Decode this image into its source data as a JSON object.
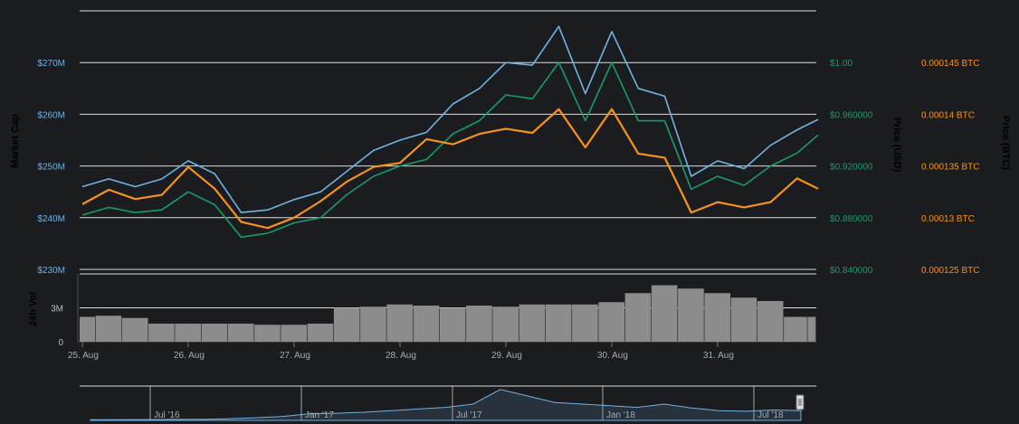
{
  "chart_data": {
    "type": "line",
    "title": "",
    "colors": {
      "market_cap": "#6fb3e3",
      "price_usd": "#1a9a6c",
      "price_btc": "#f7931a",
      "volume": "#8c8c8c",
      "grid": "#ffffff",
      "background": "#1b1c1f"
    },
    "axes": {
      "market_cap": {
        "label": "Market Cap",
        "ticks": [
          "$230M",
          "$240M",
          "$250M",
          "$260M",
          "$270M"
        ],
        "tick_values": [
          230,
          240,
          250,
          260,
          270
        ],
        "range": [
          230,
          280
        ]
      },
      "price_usd": {
        "label": "Price (USD)",
        "ticks": [
          "$0.840000",
          "$0.880000",
          "$0.920000",
          "$0.960000",
          "$1.00"
        ],
        "tick_values": [
          0.84,
          0.88,
          0.92,
          0.96,
          1.0
        ],
        "range": [
          0.84,
          1.04
        ]
      },
      "price_btc": {
        "label": "Price (BTC)",
        "ticks": [
          "0.000125 BTC",
          "0.00013 BTC",
          "0.000135 BTC",
          "0.00014 BTC",
          "0.000145 BTC"
        ],
        "tick_values": [
          0.000125,
          0.00013,
          0.000135,
          0.00014,
          0.000145
        ],
        "range": [
          0.000125,
          0.00015
        ]
      },
      "volume": {
        "label": "24h Vol",
        "ticks": [
          "0",
          "3M"
        ],
        "tick_values": [
          0,
          3
        ],
        "range": [
          0,
          6
        ]
      }
    },
    "x_ticks": [
      "25. Aug",
      "26. Aug",
      "27. Aug",
      "28. Aug",
      "29. Aug",
      "30. Aug",
      "31. Aug"
    ],
    "x": [
      0,
      0.25,
      0.5,
      0.75,
      1,
      1.25,
      1.5,
      1.75,
      2,
      2.25,
      2.5,
      2.75,
      3,
      3.25,
      3.5,
      3.75,
      4,
      4.25,
      4.5,
      4.75,
      5,
      5.25,
      5.5,
      5.75,
      6,
      6.25,
      6.5,
      6.75,
      6.95
    ],
    "series": [
      {
        "name": "Market Cap",
        "axis": "market_cap",
        "values": [
          246,
          247.5,
          246,
          247.5,
          251,
          248.5,
          241,
          241.5,
          243.5,
          245,
          249,
          253,
          255,
          256.5,
          262,
          265,
          270,
          269.5,
          277,
          264,
          276,
          265,
          263.5,
          248,
          251,
          249.5,
          254,
          257,
          259
        ]
      },
      {
        "name": "Price (USD)",
        "axis": "price_usd",
        "values": [
          0.882,
          0.888,
          0.884,
          0.886,
          0.9,
          0.89,
          0.865,
          0.868,
          0.876,
          0.88,
          0.898,
          0.912,
          0.92,
          0.925,
          0.945,
          0.955,
          0.975,
          0.972,
          1.0,
          0.955,
          1.0,
          0.955,
          0.955,
          0.902,
          0.912,
          0.905,
          0.92,
          0.93,
          0.944
        ]
      },
      {
        "name": "Price (BTC)",
        "axis": "price_btc",
        "values": [
          0.0001313,
          0.0001327,
          0.0001318,
          0.0001322,
          0.0001349,
          0.0001328,
          0.0001296,
          0.000129,
          0.00013,
          0.0001316,
          0.0001335,
          0.0001349,
          0.0001353,
          0.0001376,
          0.0001371,
          0.0001381,
          0.0001386,
          0.0001382,
          0.0001405,
          0.0001368,
          0.0001405,
          0.0001362,
          0.0001358,
          0.0001305,
          0.0001315,
          0.000131,
          0.0001315,
          0.0001338,
          0.0001328
        ]
      },
      {
        "name": "24h Vol",
        "axis": "volume",
        "values": [
          2.2,
          2.3,
          2.1,
          1.6,
          1.6,
          1.6,
          1.6,
          1.5,
          1.5,
          1.6,
          3.0,
          3.1,
          3.3,
          3.2,
          3.0,
          3.2,
          3.1,
          3.3,
          3.3,
          3.3,
          3.5,
          4.3,
          5.0,
          4.7,
          4.3,
          3.9,
          3.6,
          2.2,
          2.2
        ]
      }
    ],
    "navigator": {
      "ticks": [
        "Jul '16",
        "Jan '17",
        "Jul '17",
        "Jan '18",
        "Jul '18"
      ],
      "values": [
        0.02,
        0.02,
        0.025,
        0.03,
        0.03,
        0.05,
        0.08,
        0.12,
        0.2,
        0.22,
        0.25,
        0.3,
        0.35,
        0.4,
        0.5,
        0.95,
        0.75,
        0.55,
        0.5,
        0.45,
        0.4,
        0.5,
        0.38,
        0.3,
        0.28,
        0.32,
        0.3
      ]
    }
  }
}
